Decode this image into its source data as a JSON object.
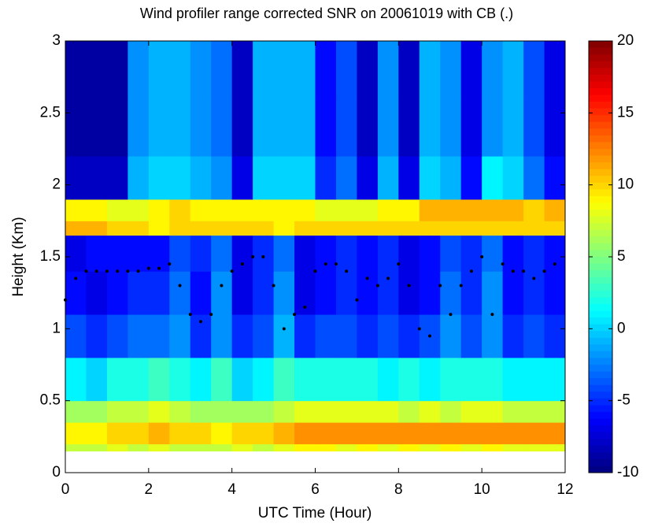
{
  "chart_data": {
    "type": "heatmap",
    "title": "Wind profiler range corrected SNR on 20061019 with CB (.)",
    "xlabel": "UTC Time (Hour)",
    "ylabel": "Height (Km)",
    "colormap": "jet",
    "xlim": [
      0,
      12
    ],
    "ylim": [
      0,
      3
    ],
    "xticks": [
      0,
      2,
      4,
      6,
      8,
      10,
      12
    ],
    "yticks": [
      0,
      0.5,
      1,
      1.5,
      2,
      2.5,
      3
    ],
    "clim": [
      -10,
      20
    ],
    "colorbar_ticks": [
      -10,
      -5,
      0,
      5,
      10,
      15,
      20
    ],
    "x_edges": [
      0,
      0.5,
      1,
      1.5,
      2,
      2.5,
      3,
      3.5,
      4,
      4.5,
      5,
      5.5,
      6,
      6.5,
      7,
      7.5,
      8,
      8.5,
      9,
      9.5,
      10,
      10.5,
      11,
      11.5,
      12
    ],
    "y_edges": [
      0.15,
      0.2,
      0.35,
      0.5,
      0.8,
      1.1,
      1.4,
      1.65,
      1.75,
      1.9,
      2.2,
      2.6,
      3.0
    ],
    "z": [
      [
        7,
        7,
        8,
        7,
        8,
        7,
        7,
        7,
        8,
        7,
        8,
        9,
        9,
        8,
        9,
        8,
        9,
        8,
        9,
        8,
        9,
        8,
        8,
        8
      ],
      [
        9,
        9,
        10,
        10,
        11,
        10,
        10,
        9,
        10,
        10,
        11,
        12,
        12,
        12,
        12,
        12,
        12,
        12,
        12,
        12,
        12,
        12,
        12,
        12
      ],
      [
        6,
        6,
        7,
        7,
        8,
        7,
        6,
        6,
        6,
        6,
        7,
        8,
        8,
        8,
        8,
        8,
        7,
        8,
        7,
        8,
        8,
        7,
        7,
        7
      ],
      [
        1,
        0,
        2,
        2,
        3,
        2,
        1,
        3,
        0,
        1,
        3,
        2,
        2,
        2,
        2,
        1,
        2,
        1,
        2,
        2,
        2,
        1,
        1,
        1
      ],
      [
        -4,
        -5,
        -4,
        -3,
        -3,
        -2,
        -5,
        -2,
        -5,
        -4,
        -1,
        -5,
        -4,
        -4,
        -5,
        -4,
        -5,
        -4,
        -2,
        -4,
        -2,
        -5,
        -4,
        -5
      ],
      [
        -6,
        -7,
        -6,
        -5,
        -5,
        -3,
        -6,
        -2,
        -7,
        -5,
        -2,
        -7,
        -6,
        -5,
        -6,
        -5,
        -7,
        -6,
        -3,
        -5,
        -2,
        -6,
        -5,
        -6
      ],
      [
        -7,
        -6,
        -6,
        -6,
        -6,
        -4,
        -5,
        -3,
        -7,
        -5,
        -3,
        -7,
        -6,
        -5,
        -6,
        -5,
        -7,
        -6,
        -4,
        -5,
        -3,
        -6,
        -5,
        -6
      ],
      [
        11,
        11,
        10,
        10,
        9,
        10,
        10,
        10,
        10,
        10,
        9,
        10,
        10,
        10,
        10,
        10,
        10,
        10,
        10,
        10,
        10,
        10,
        10,
        10
      ],
      [
        9,
        9,
        8,
        8,
        9,
        10,
        9,
        9,
        9,
        9,
        9,
        9,
        8,
        8,
        8,
        9,
        9,
        11,
        11,
        11,
        11,
        11,
        10,
        11
      ],
      [
        -8,
        -8,
        -8,
        -1,
        0,
        0,
        -1,
        -2,
        -7,
        0,
        0,
        0,
        -5,
        -3,
        -7,
        -1,
        -7,
        0,
        -1,
        -6,
        1,
        0,
        -3,
        -6
      ],
      [
        -9,
        -9,
        -9,
        -2,
        -1,
        -1,
        -2,
        -3,
        -8,
        -1,
        -1,
        -1,
        -6,
        -4,
        -8,
        -2,
        -8,
        -1,
        -2,
        -7,
        -2,
        -1,
        -4,
        -7
      ],
      [
        -9,
        -9,
        -9,
        -2,
        -1,
        -1,
        -2,
        -3,
        -8,
        -1,
        -1,
        -1,
        -6,
        -4,
        -8,
        -2,
        -8,
        -1,
        -2,
        -7,
        -2,
        -1,
        -4,
        -7
      ]
    ],
    "series": [
      {
        "type": "scatter",
        "color": "#000000",
        "x": [
          0,
          0.25,
          0.5,
          0.75,
          1,
          1.25,
          1.5,
          1.75,
          2,
          2.25,
          2.5,
          2.75,
          3,
          3.25,
          3.5,
          3.75,
          4,
          4.25,
          4.5,
          4.75,
          5,
          5.25,
          5.5,
          5.75,
          6,
          6.25,
          6.5,
          6.75,
          7,
          7.25,
          7.5,
          7.75,
          8,
          8.25,
          8.5,
          8.75,
          9,
          9.25,
          9.5,
          9.75,
          10,
          10.25,
          10.5,
          10.75,
          11,
          11.25,
          11.5,
          11.75
        ],
        "values": [
          1.2,
          1.35,
          1.4,
          1.4,
          1.4,
          1.4,
          1.4,
          1.4,
          1.42,
          1.42,
          1.45,
          1.3,
          1.1,
          1.05,
          1.1,
          1.3,
          1.4,
          1.45,
          1.5,
          1.5,
          1.3,
          1.0,
          1.1,
          1.15,
          1.4,
          1.45,
          1.45,
          1.4,
          1.2,
          1.35,
          1.3,
          1.35,
          1.45,
          1.3,
          1.0,
          0.95,
          1.3,
          1.1,
          1.3,
          1.4,
          1.5,
          1.1,
          1.45,
          1.4,
          1.4,
          1.35,
          1.4,
          1.45
        ]
      }
    ]
  }
}
